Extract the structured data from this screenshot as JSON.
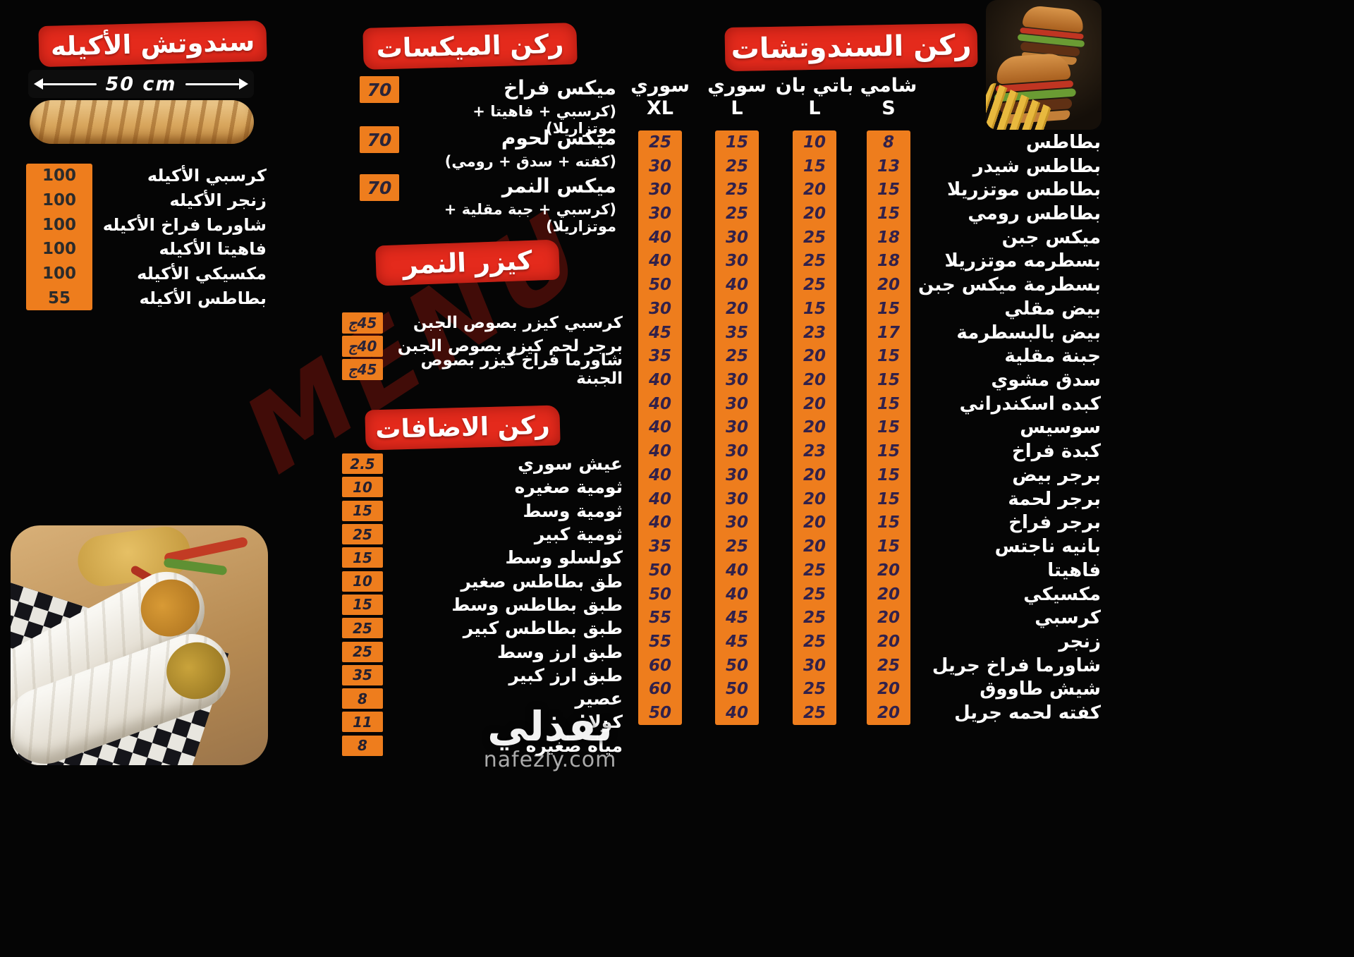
{
  "page": {
    "background": "#050505",
    "accent_red": "#e42a1c",
    "accent_orange": "#ee7d1d"
  },
  "watermarks": {
    "menu": "MENU",
    "brand_ar": "نفذلي",
    "brand_url": "nafezly.com"
  },
  "akeela": {
    "title": "سندوتش الأكيله",
    "size_label": "50 cm",
    "items": [
      {
        "name": "كرسبي الأكيله",
        "price": "100"
      },
      {
        "name": "زنجر الأكيله",
        "price": "100"
      },
      {
        "name": "شاورما فراخ الأكيله",
        "price": "100"
      },
      {
        "name": "فاهيتا الأكيله",
        "price": "100"
      },
      {
        "name": "مكسيكي الأكيله",
        "price": "100"
      },
      {
        "name": "بطاطس الأكيله",
        "price": "55"
      }
    ]
  },
  "mixes": {
    "title": "ركن الميكسات",
    "items": [
      {
        "name": "ميكس فراخ",
        "desc": "(كرسبي + فاهيتا + موتزاريلا)",
        "price": "70"
      },
      {
        "name": "ميكس لحوم",
        "desc": "(كفته + سدق + رومي)",
        "price": "70"
      },
      {
        "name": "ميكس النمر",
        "desc": "(كرسبي + جبة مقلية + موتزاريلا)",
        "price": "70"
      }
    ]
  },
  "kaiser": {
    "title": "كيزر النمر",
    "items": [
      {
        "name": "كرسبي  كيزر بصوص الجبن",
        "price": "45ج"
      },
      {
        "name": "برجر لحم كيزر بصوص الجبن",
        "price": "40ج"
      },
      {
        "name": "شاورما فراخ كيزر بصوص الجبنة",
        "price": "45ج"
      }
    ]
  },
  "extras": {
    "title": "ركن الاضافات",
    "items": [
      {
        "name": "عيش سوري",
        "price": "2.5"
      },
      {
        "name": "ثومية صغيره",
        "price": "10"
      },
      {
        "name": "ثومية وسط",
        "price": "15"
      },
      {
        "name": "ثومية كبير",
        "price": "25"
      },
      {
        "name": "كولسلو وسط",
        "price": "15"
      },
      {
        "name": "طق بطاطس صغير",
        "price": "10"
      },
      {
        "name": "طبق بطاطس وسط",
        "price": "15"
      },
      {
        "name": "طبق بطاطس كبير",
        "price": "25"
      },
      {
        "name": "طبق ارز وسط",
        "price": "25"
      },
      {
        "name": "طبق ارز كبير",
        "price": "35"
      },
      {
        "name": "عصير",
        "price": "8"
      },
      {
        "name": "كولا",
        "price": "11"
      },
      {
        "name": "مياه صغيره",
        "price": "8"
      }
    ]
  },
  "sandwiches": {
    "title": "ركن السندوتشات",
    "columns": [
      {
        "name": "سوري",
        "size": "XL"
      },
      {
        "name": "سوري",
        "size": "L"
      },
      {
        "name": "باتي بان",
        "size": "L"
      },
      {
        "name": "شامي",
        "size": "S"
      }
    ],
    "rows": [
      {
        "name": "بطاطس",
        "prices": [
          "25",
          "15",
          "10",
          "8"
        ]
      },
      {
        "name": "بطاطس شيدر",
        "prices": [
          "30",
          "25",
          "15",
          "13"
        ]
      },
      {
        "name": "بطاطس موتزريلا",
        "prices": [
          "30",
          "25",
          "20",
          "15"
        ]
      },
      {
        "name": "بطاطس رومي",
        "prices": [
          "30",
          "25",
          "20",
          "15"
        ]
      },
      {
        "name": "ميكس جبن",
        "prices": [
          "40",
          "30",
          "25",
          "18"
        ]
      },
      {
        "name": "بسطرمه موتزريلا",
        "prices": [
          "40",
          "30",
          "25",
          "18"
        ]
      },
      {
        "name": "بسطرمة ميكس جبن",
        "prices": [
          "50",
          "40",
          "25",
          "20"
        ]
      },
      {
        "name": "بيض مقلي",
        "prices": [
          "30",
          "20",
          "15",
          "15"
        ]
      },
      {
        "name": "بيض بالبسطرمة",
        "prices": [
          "45",
          "35",
          "23",
          "17"
        ]
      },
      {
        "name": "جبنة مقلية",
        "prices": [
          "35",
          "25",
          "20",
          "15"
        ]
      },
      {
        "name": "سدق مشوي",
        "prices": [
          "40",
          "30",
          "20",
          "15"
        ]
      },
      {
        "name": "كبده اسكندراني",
        "prices": [
          "40",
          "30",
          "20",
          "15"
        ]
      },
      {
        "name": "سوسيس",
        "prices": [
          "40",
          "30",
          "20",
          "15"
        ]
      },
      {
        "name": "كبدة فراخ",
        "prices": [
          "40",
          "30",
          "23",
          "15"
        ]
      },
      {
        "name": "برجر بيض",
        "prices": [
          "40",
          "30",
          "20",
          "15"
        ]
      },
      {
        "name": "برجر لحمة",
        "prices": [
          "40",
          "30",
          "20",
          "15"
        ]
      },
      {
        "name": "برجر فراخ",
        "prices": [
          "40",
          "30",
          "20",
          "15"
        ]
      },
      {
        "name": "بانيه ناجتس",
        "prices": [
          "35",
          "25",
          "20",
          "15"
        ]
      },
      {
        "name": "فاهيتا",
        "prices": [
          "50",
          "40",
          "25",
          "20"
        ]
      },
      {
        "name": "مكسيكي",
        "prices": [
          "50",
          "40",
          "25",
          "20"
        ]
      },
      {
        "name": "كرسبي",
        "prices": [
          "55",
          "45",
          "25",
          "20"
        ]
      },
      {
        "name": "زنجر",
        "prices": [
          "55",
          "45",
          "25",
          "20"
        ]
      },
      {
        "name": "شاورما فراخ جريل",
        "prices": [
          "60",
          "50",
          "30",
          "25"
        ]
      },
      {
        "name": "شيش طاووق",
        "prices": [
          "60",
          "50",
          "25",
          "20"
        ]
      },
      {
        "name": "كفته لحمه جريل",
        "prices": [
          "50",
          "40",
          "25",
          "20"
        ]
      }
    ]
  }
}
